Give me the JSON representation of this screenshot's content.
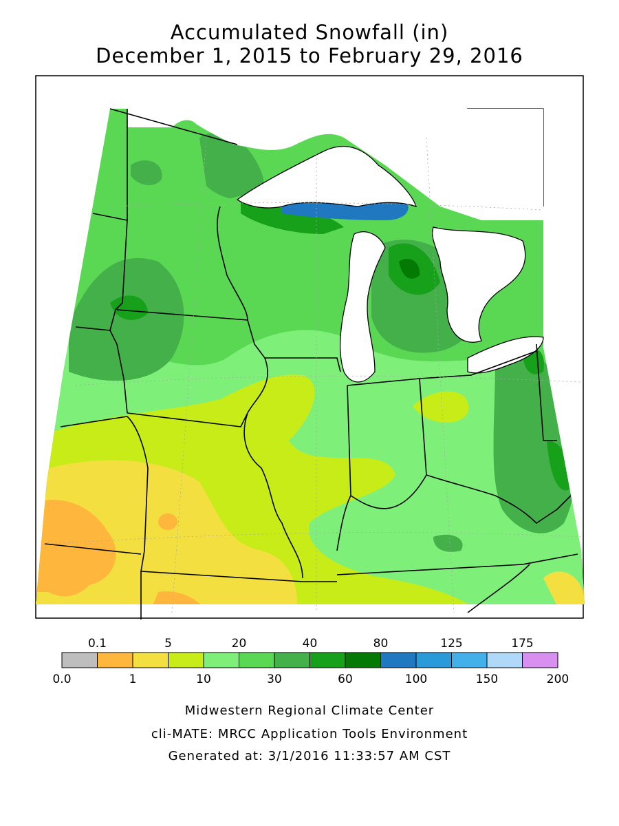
{
  "title": "Accumulated Snowfall (in)",
  "subtitle": "December 1, 2015 to February 29, 2016",
  "legend": {
    "colors": [
      "#bebebe",
      "#ffb63c",
      "#f3e040",
      "#c8ec18",
      "#7ef07a",
      "#5ad854",
      "#44b04a",
      "#17a01a",
      "#047a04",
      "#1f78c0",
      "#2a9ad8",
      "#44b0ea",
      "#b0d8f8",
      "#d890f0"
    ],
    "top_labels": [
      "0.1",
      "5",
      "20",
      "40",
      "80",
      "125",
      "175"
    ],
    "bottom_labels": [
      "0.0",
      "1",
      "10",
      "30",
      "60",
      "100",
      "150",
      "200"
    ]
  },
  "footer": {
    "line1": "Midwestern Regional Climate Center",
    "line2": "cli-MATE: MRCC Application Tools Environment",
    "line3": "Generated at: 3/1/2016 11:33:57 AM CST"
  }
}
